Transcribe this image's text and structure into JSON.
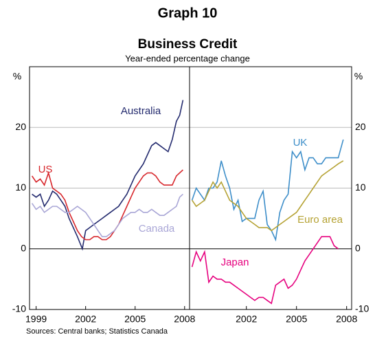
{
  "graph_number": "Graph 10",
  "title": "Business Credit",
  "subtitle": "Year-ended percentage change",
  "y_axis_label": "%",
  "sources": "Sources: Central banks; Statistics Canada",
  "chart_data": [
    {
      "type": "line",
      "xlim": [
        1998.6,
        2008.3
      ],
      "xticks": [
        1999,
        2002,
        2005,
        2008
      ],
      "ylim": [
        -10,
        30
      ],
      "yticks": [
        -10,
        0,
        10,
        20
      ],
      "grid": true,
      "series": [
        {
          "name": "Australia",
          "color": "#232a6e",
          "x": [
            1998.75,
            1999,
            1999.25,
            1999.5,
            1999.75,
            2000,
            2000.25,
            2000.5,
            2000.75,
            2001,
            2001.25,
            2001.5,
            2001.8,
            2002,
            2002.25,
            2002.5,
            2002.75,
            2003,
            2003.25,
            2003.5,
            2003.75,
            2004,
            2004.25,
            2004.5,
            2004.75,
            2005,
            2005.25,
            2005.5,
            2005.75,
            2006,
            2006.25,
            2006.5,
            2006.75,
            2007,
            2007.25,
            2007.5,
            2007.7,
            2007.9
          ],
          "values": [
            9,
            8.5,
            9,
            7,
            8,
            9.5,
            9,
            8,
            7,
            5,
            3.5,
            2,
            0,
            3,
            3.5,
            4,
            4.5,
            5,
            5.5,
            6,
            6.5,
            7,
            8,
            9,
            10.5,
            12,
            13,
            14,
            15.5,
            17,
            17.5,
            17,
            16.5,
            16,
            18,
            21,
            22,
            24.5
          ]
        },
        {
          "name": "US",
          "color": "#d7262b",
          "x": [
            1998.75,
            1999,
            1999.25,
            1999.5,
            1999.75,
            2000,
            2000.25,
            2000.5,
            2000.75,
            2001,
            2001.25,
            2001.5,
            2001.75,
            2002,
            2002.25,
            2002.5,
            2002.75,
            2003,
            2003.25,
            2003.5,
            2003.75,
            2004,
            2004.25,
            2004.5,
            2004.75,
            2005,
            2005.25,
            2005.5,
            2005.75,
            2006,
            2006.25,
            2006.5,
            2006.75,
            2007,
            2007.25,
            2007.5,
            2007.9
          ],
          "values": [
            12,
            11,
            11.5,
            10.5,
            12.5,
            10,
            9.5,
            9,
            8,
            6,
            4.5,
            3,
            2,
            1.5,
            1.5,
            2,
            2,
            1.5,
            1.5,
            2,
            3,
            4,
            5.5,
            7,
            8.5,
            10,
            11,
            12,
            12.5,
            12.5,
            12,
            11,
            10.5,
            10.5,
            10.5,
            12,
            13
          ]
        },
        {
          "name": "Canada",
          "color": "#a9a6d6",
          "x": [
            1998.75,
            1999,
            1999.25,
            1999.5,
            1999.75,
            2000,
            2000.25,
            2000.5,
            2000.75,
            2001,
            2001.25,
            2001.5,
            2001.75,
            2002,
            2002.25,
            2002.5,
            2002.75,
            2003,
            2003.25,
            2003.5,
            2003.75,
            2004,
            2004.25,
            2004.5,
            2004.75,
            2005,
            2005.25,
            2005.5,
            2005.75,
            2006,
            2006.25,
            2006.5,
            2006.75,
            2007,
            2007.25,
            2007.5,
            2007.7,
            2007.9
          ],
          "values": [
            7.5,
            6.5,
            7,
            6,
            6.5,
            7,
            7,
            6.5,
            6,
            6,
            6.5,
            7,
            6.5,
            6,
            5,
            4,
            3,
            2,
            2,
            2.5,
            3,
            4,
            5,
            5.5,
            6,
            6,
            6.5,
            6,
            6,
            6.5,
            6,
            5.5,
            5.5,
            6,
            6.5,
            7,
            8.5,
            9
          ]
        }
      ]
    },
    {
      "type": "line",
      "xlim": [
        1998.6,
        2008.3
      ],
      "xticks": [
        2002,
        2005,
        2008
      ],
      "ylim": [
        -10,
        30
      ],
      "yticks": [
        -10,
        0,
        10,
        20
      ],
      "grid": true,
      "series": [
        {
          "name": "UK",
          "color": "#3d8ec9",
          "x": [
            1998.75,
            1999,
            1999.25,
            1999.5,
            1999.75,
            2000,
            2000.25,
            2000.5,
            2000.75,
            2001,
            2001.25,
            2001.5,
            2001.75,
            2002,
            2002.25,
            2002.5,
            2002.75,
            2003,
            2003.25,
            2003.5,
            2003.75,
            2004,
            2004.25,
            2004.5,
            2004.75,
            2005,
            2005.25,
            2005.5,
            2005.75,
            2006,
            2006.25,
            2006.5,
            2006.75,
            2007,
            2007.25,
            2007.5,
            2007.8
          ],
          "values": [
            8,
            10,
            9,
            8,
            10,
            10,
            11,
            14.5,
            12,
            10,
            6.5,
            8,
            4.5,
            5,
            5,
            5,
            8,
            9.5,
            4,
            3,
            1.5,
            6,
            8,
            9,
            16,
            15,
            16,
            13,
            15,
            15,
            14,
            14,
            15,
            15,
            15,
            15,
            18
          ]
        },
        {
          "name": "Euro area",
          "color": "#b5a233",
          "x": [
            1998.75,
            1999,
            1999.25,
            1999.5,
            1999.75,
            2000,
            2000.25,
            2000.5,
            2000.75,
            2001,
            2001.25,
            2001.5,
            2001.75,
            2002,
            2002.25,
            2002.5,
            2002.75,
            2003,
            2003.25,
            2003.5,
            2003.75,
            2004,
            2004.25,
            2004.5,
            2004.75,
            2005,
            2005.25,
            2005.5,
            2005.75,
            2006,
            2006.25,
            2006.5,
            2006.75,
            2007,
            2007.25,
            2007.5,
            2007.8
          ],
          "values": [
            8,
            7,
            7.5,
            8,
            9.5,
            11,
            10,
            11,
            9.5,
            8,
            7.5,
            7,
            6,
            5,
            4.5,
            4,
            3.5,
            3.5,
            3.5,
            3,
            3.5,
            4,
            4.5,
            5,
            5.5,
            6,
            7,
            8,
            9,
            10,
            11,
            12,
            12.5,
            13,
            13.5,
            14,
            14.5
          ]
        },
        {
          "name": "Japan",
          "color": "#e6007e",
          "x": [
            1998.75,
            1999,
            1999.25,
            1999.5,
            1999.75,
            2000,
            2000.25,
            2000.5,
            2000.75,
            2001,
            2001.25,
            2001.5,
            2001.75,
            2002,
            2002.25,
            2002.5,
            2002.75,
            2003,
            2003.25,
            2003.5,
            2003.75,
            2004,
            2004.25,
            2004.5,
            2004.75,
            2005,
            2005.25,
            2005.5,
            2005.75,
            2006,
            2006.25,
            2006.5,
            2006.75,
            2007,
            2007.25,
            2007.5
          ],
          "values": [
            -3,
            -0.5,
            -2,
            -0.5,
            -5.5,
            -4.5,
            -5,
            -5,
            -5.5,
            -5.5,
            -6,
            -6.5,
            -7,
            -7.5,
            -8,
            -8.5,
            -8,
            -8,
            -8.5,
            -9,
            -6,
            -5.5,
            -5,
            -6.5,
            -6,
            -5,
            -3.5,
            -2,
            -1,
            0,
            1,
            2,
            2,
            2,
            0.5,
            0
          ]
        }
      ]
    }
  ]
}
